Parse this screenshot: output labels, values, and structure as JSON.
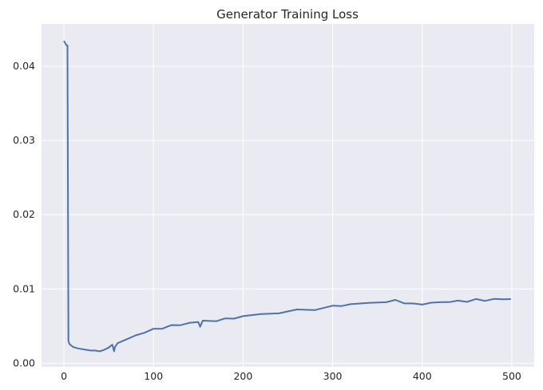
{
  "chart_data": {
    "type": "line",
    "title": "Generator Training Loss",
    "xlabel": "",
    "ylabel": "",
    "xlim": [
      -25,
      525
    ],
    "ylim": [
      -0.0005,
      0.0457
    ],
    "x_ticks": [
      0,
      100,
      200,
      300,
      400,
      500
    ],
    "x_tick_labels": [
      "0",
      "100",
      "200",
      "300",
      "400",
      "500"
    ],
    "y_ticks": [
      0.0,
      0.01,
      0.02,
      0.03,
      0.04
    ],
    "y_tick_labels": [
      "0.00",
      "0.01",
      "0.02",
      "0.03",
      "0.04"
    ],
    "grid": true,
    "legend": "none",
    "colors": {
      "background": "#eaeaf2",
      "grid": "#ffffff",
      "line": "#4c72b0"
    },
    "series": [
      {
        "points": [
          [
            0,
            0.0434
          ],
          [
            1,
            0.0432
          ],
          [
            2,
            0.043
          ],
          [
            3,
            0.0428
          ],
          [
            4,
            0.0428
          ],
          [
            5,
            0.003
          ],
          [
            6,
            0.0026
          ],
          [
            8,
            0.0024
          ],
          [
            10,
            0.0022
          ],
          [
            15,
            0.002
          ],
          [
            20,
            0.0019
          ],
          [
            25,
            0.0018
          ],
          [
            30,
            0.0017
          ],
          [
            35,
            0.0017
          ],
          [
            40,
            0.0016
          ],
          [
            45,
            0.0018
          ],
          [
            50,
            0.0021
          ],
          [
            54,
            0.0025
          ],
          [
            56,
            0.0016
          ],
          [
            57,
            0.0022
          ],
          [
            60,
            0.0027
          ],
          [
            70,
            0.0032
          ],
          [
            80,
            0.0037
          ],
          [
            90,
            0.0042
          ],
          [
            100,
            0.0045
          ],
          [
            110,
            0.0048
          ],
          [
            120,
            0.005
          ],
          [
            130,
            0.0052
          ],
          [
            140,
            0.0054
          ],
          [
            150,
            0.0055
          ],
          [
            152,
            0.005
          ],
          [
            155,
            0.0056
          ],
          [
            170,
            0.0058
          ],
          [
            180,
            0.0059
          ],
          [
            190,
            0.0061
          ],
          [
            200,
            0.0063
          ],
          [
            220,
            0.0066
          ],
          [
            240,
            0.0068
          ],
          [
            260,
            0.0071
          ],
          [
            280,
            0.0073
          ],
          [
            300,
            0.0076
          ],
          [
            310,
            0.0078
          ],
          [
            320,
            0.0079
          ],
          [
            340,
            0.0081
          ],
          [
            360,
            0.0083
          ],
          [
            370,
            0.0084
          ],
          [
            380,
            0.0082
          ],
          [
            390,
            0.0079
          ],
          [
            400,
            0.008
          ],
          [
            410,
            0.0081
          ],
          [
            420,
            0.0082
          ],
          [
            430,
            0.0083
          ],
          [
            440,
            0.0083
          ],
          [
            450,
            0.0084
          ],
          [
            460,
            0.0085
          ],
          [
            470,
            0.0085
          ],
          [
            480,
            0.0086
          ],
          [
            490,
            0.0086
          ],
          [
            499,
            0.0087
          ]
        ]
      }
    ]
  }
}
